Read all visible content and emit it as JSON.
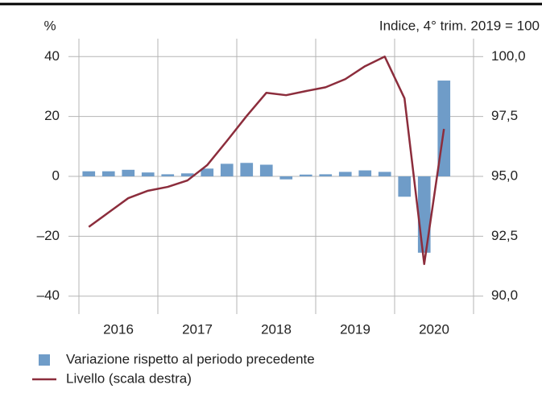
{
  "chart_data": {
    "type": "bar_line",
    "y_label": "%",
    "y2_label": "Indice, 4° trim. 2019 = 100",
    "groups": [
      "2016",
      "2017",
      "2018",
      "2019",
      "2020"
    ],
    "categories": [
      null,
      null,
      null,
      null,
      null,
      null,
      null,
      null,
      null,
      null,
      null,
      null,
      null,
      null,
      null,
      null,
      null,
      null,
      null,
      null
    ],
    "series": [
      {
        "name": "Variazione rispetto al periodo precedente",
        "type": "bar",
        "color": "#6f9cc8",
        "values": [
          1.7,
          1.7,
          2.2,
          1.3,
          0.7,
          1.0,
          2.6,
          4.2,
          4.5,
          3.9,
          -1.0,
          0.6,
          0.7,
          1.5,
          2.0,
          1.5,
          -6.8,
          -25.5,
          32.0,
          null
        ]
      },
      {
        "name": "Livello (scala destra)",
        "type": "line",
        "axis": "y2",
        "color": "#8c2d3c",
        "values": [
          92.89,
          93.49,
          94.09,
          94.4,
          94.56,
          94.83,
          95.47,
          96.48,
          97.52,
          98.49,
          98.39,
          98.56,
          98.72,
          99.06,
          99.6,
          100.0,
          98.26,
          91.34,
          96.98,
          null
        ]
      }
    ],
    "ylim": [
      -46,
      46
    ],
    "yticks": [
      {
        "value": -40,
        "label": "–40"
      },
      {
        "value": -20,
        "label": "–20"
      },
      0,
      20,
      40
    ],
    "y2lim": [
      89.25,
      100.75
    ],
    "y2ticks": [
      {
        "value": 90,
        "label": "90,0"
      },
      {
        "value": 92.5,
        "label": "92,5"
      },
      {
        "value": 95,
        "label": "95,0"
      },
      {
        "value": 97.5,
        "label": "97,5"
      },
      {
        "value": 100,
        "label": "100,0"
      }
    ],
    "grid": true
  }
}
